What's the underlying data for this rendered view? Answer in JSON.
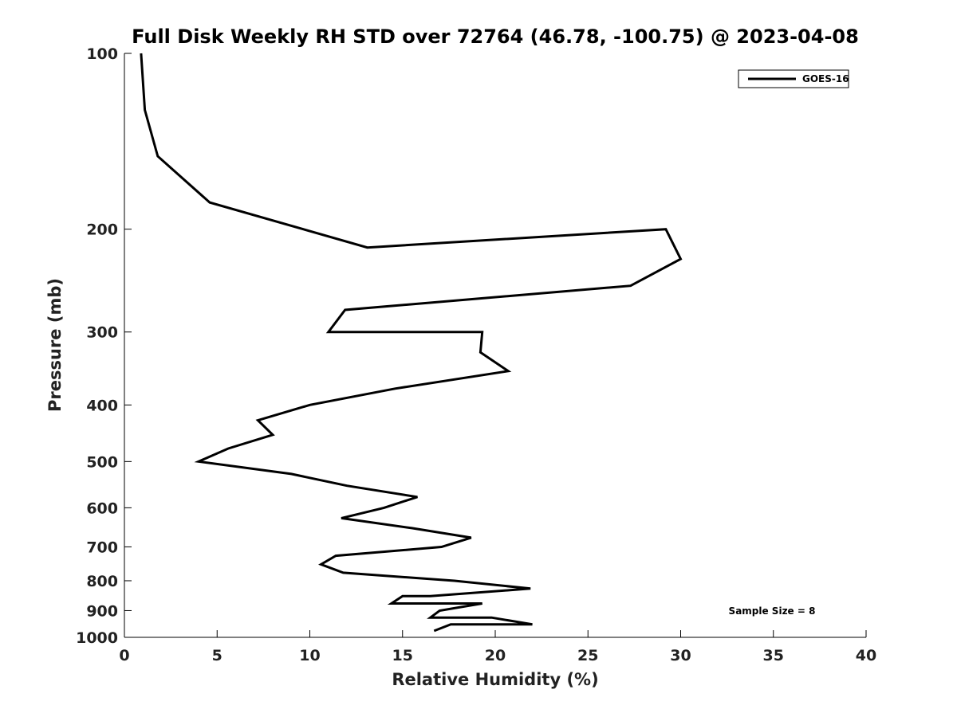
{
  "chart_data": {
    "type": "line",
    "title": "Full Disk Weekly RH STD over 72764 (46.78, -100.75) @ 2023-04-08",
    "xlabel": "Relative Humidity (%)",
    "ylabel": "Pressure (mb)",
    "xlim": [
      0,
      40
    ],
    "ylim": [
      1000,
      100
    ],
    "y_scale": "log",
    "xticks": [
      0,
      5,
      10,
      15,
      20,
      25,
      30,
      35,
      40
    ],
    "yticks": [
      100,
      200,
      300,
      400,
      500,
      600,
      700,
      800,
      900,
      1000
    ],
    "grid": false,
    "legend_position": "top-right",
    "series": [
      {
        "name": "GOES-16",
        "color": "#000000",
        "points": [
          [
            0.9,
            100
          ],
          [
            1.1,
            125
          ],
          [
            1.8,
            150
          ],
          [
            4.6,
            180
          ],
          [
            13.1,
            215
          ],
          [
            29.2,
            200
          ],
          [
            30.0,
            225
          ],
          [
            27.3,
            250
          ],
          [
            11.9,
            275
          ],
          [
            11.0,
            300
          ],
          [
            19.3,
            300
          ],
          [
            19.2,
            325
          ],
          [
            20.7,
            350
          ],
          [
            14.6,
            375
          ],
          [
            10.0,
            400
          ],
          [
            7.2,
            425
          ],
          [
            8.0,
            450
          ],
          [
            5.6,
            475
          ],
          [
            4.0,
            500
          ],
          [
            9.0,
            525
          ],
          [
            12.0,
            550
          ],
          [
            15.8,
            575
          ],
          [
            14.0,
            600
          ],
          [
            11.7,
            625
          ],
          [
            15.5,
            650
          ],
          [
            18.7,
            675
          ],
          [
            17.1,
            700
          ],
          [
            11.4,
            725
          ],
          [
            10.6,
            750
          ],
          [
            11.8,
            775
          ],
          [
            17.8,
            800
          ],
          [
            21.9,
            825
          ],
          [
            16.5,
            850
          ],
          [
            15.0,
            850
          ],
          [
            14.4,
            875
          ],
          [
            19.3,
            875
          ],
          [
            17.0,
            900
          ],
          [
            16.5,
            925
          ],
          [
            19.8,
            925
          ],
          [
            22.0,
            950
          ],
          [
            17.6,
            950
          ],
          [
            16.7,
            975
          ]
        ]
      }
    ],
    "annotations": [
      "Sample Size = 8"
    ]
  }
}
